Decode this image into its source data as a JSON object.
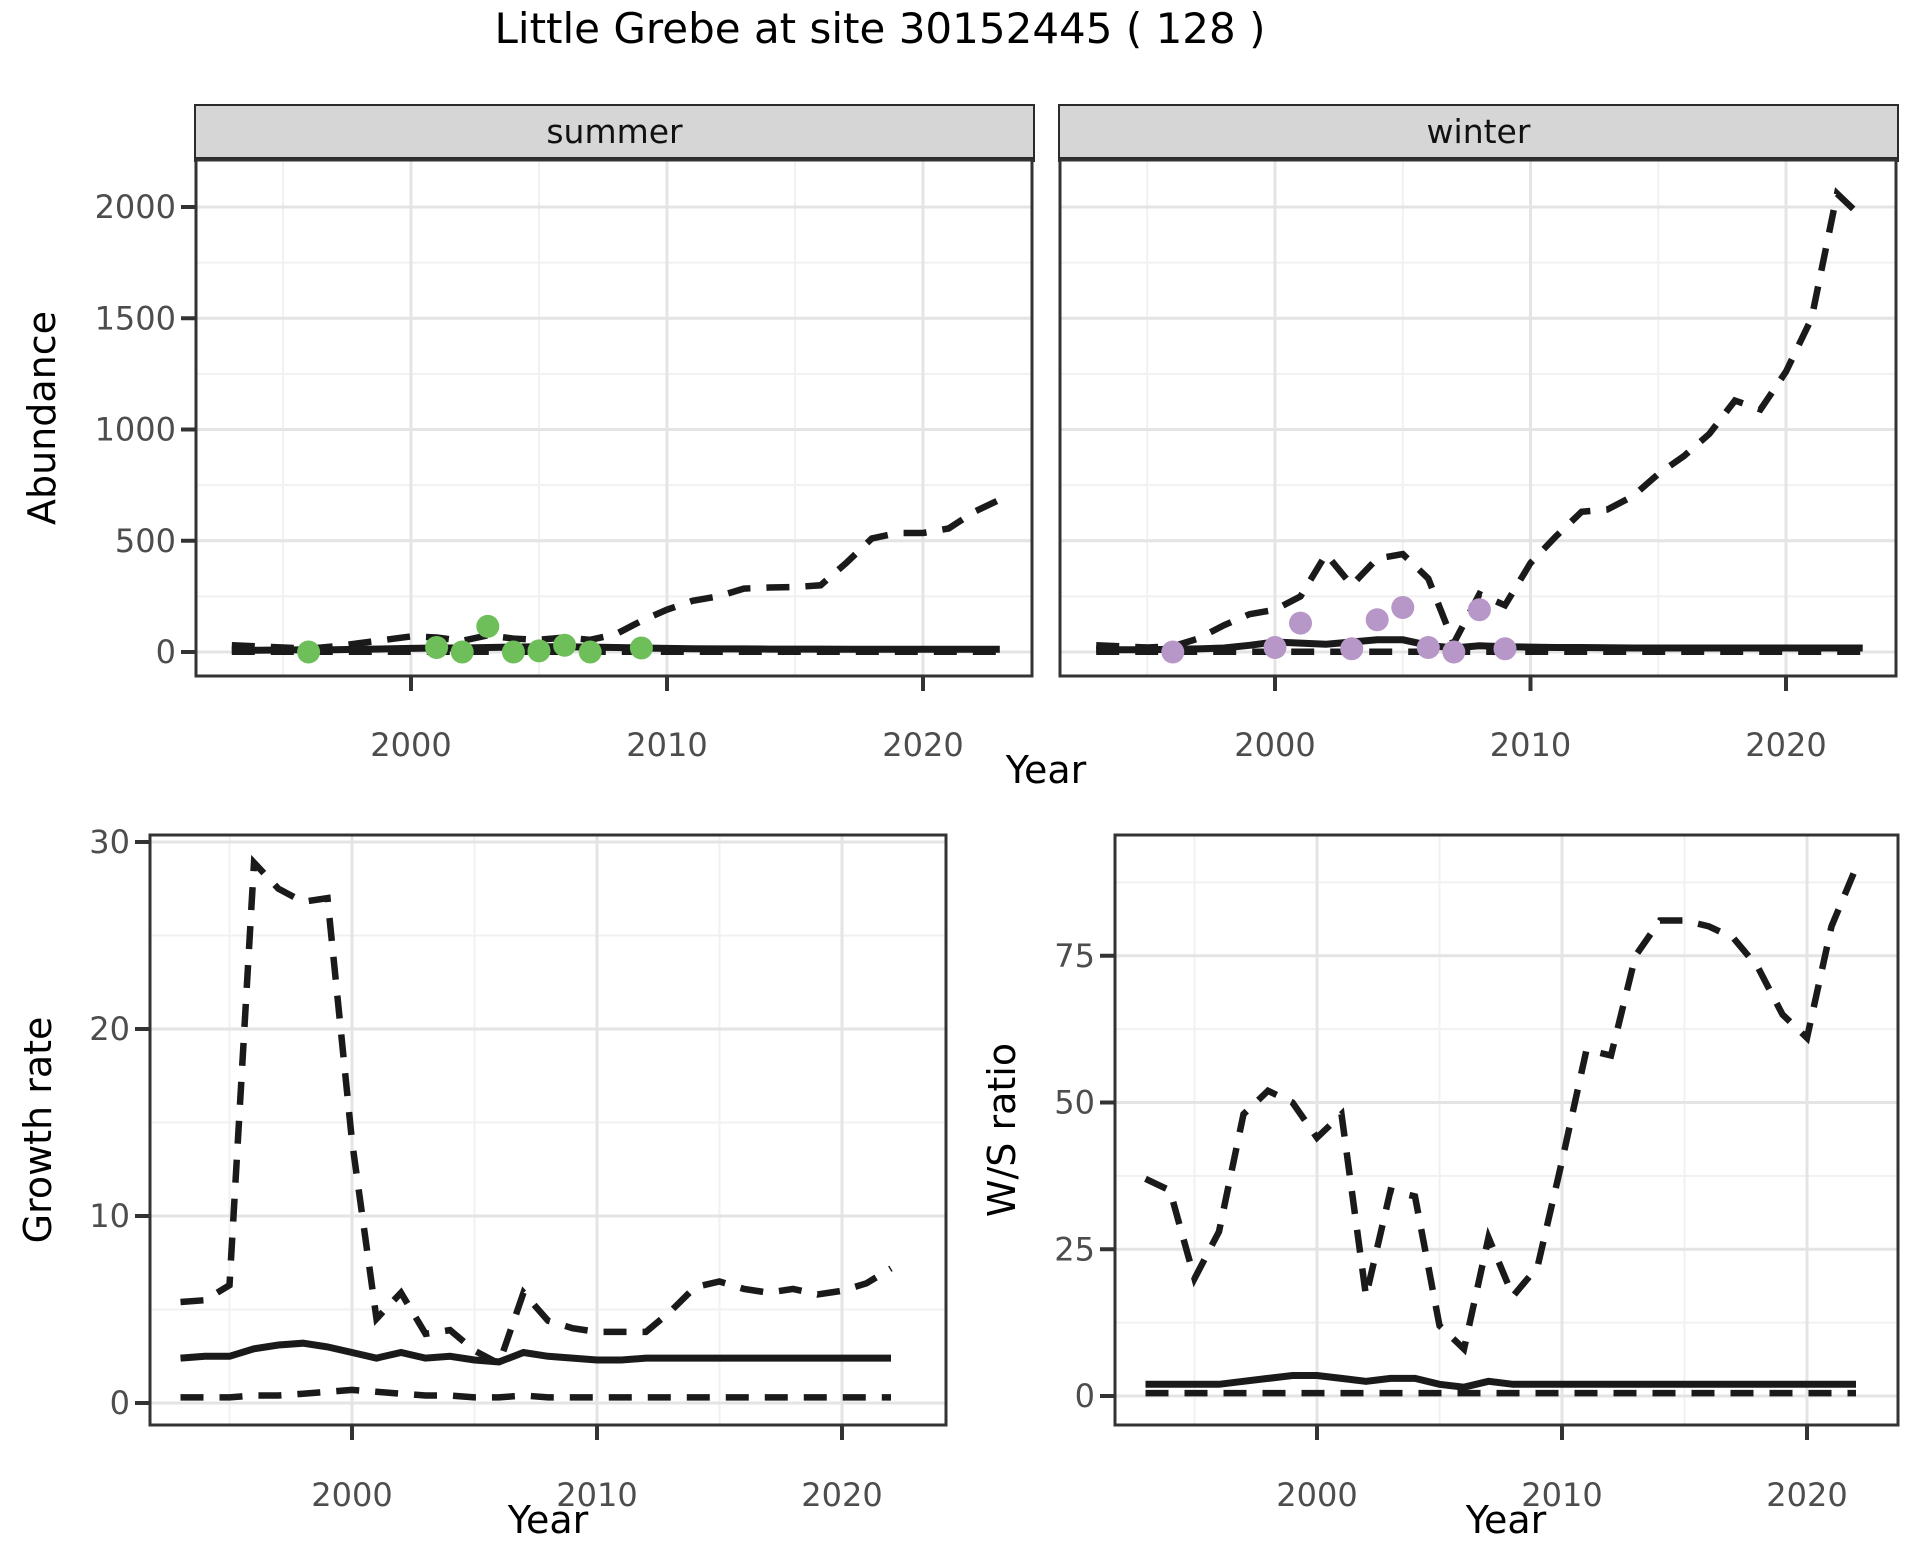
{
  "title": "Little Grebe at site 30152445 ( 128 )",
  "facets": {
    "summer": "summer",
    "winter": "winter"
  },
  "axis_labels": {
    "abundance": "Abundance",
    "year": "Year",
    "growth_rate": "Growth rate",
    "ws_ratio": "W/S ratio"
  },
  "colors": {
    "summer_point": "#6EBE5A",
    "winter_point": "#B796C8",
    "line": "#1A1A1A",
    "grid_major": "#E4E4E4",
    "grid_minor": "#F1F1F1",
    "strip_bg": "#D6D6D6",
    "panel_border": "#333333",
    "tick_text": "#4D4D4D"
  },
  "chart_data": [
    {
      "type": "line",
      "facet": "summer",
      "title": "Abundance - summer",
      "xlabel": "Year",
      "ylabel": "Abundance",
      "x": [
        1993,
        1994,
        1995,
        1996,
        1997,
        1998,
        1999,
        2000,
        2001,
        2002,
        2003,
        2004,
        2005,
        2006,
        2007,
        2008,
        2009,
        2010,
        2011,
        2012,
        2013,
        2014,
        2015,
        2016,
        2017,
        2018,
        2019,
        2020,
        2021,
        2022,
        2023
      ],
      "series": [
        {
          "name": "median",
          "style": "solid",
          "values": [
            8,
            8,
            9,
            10,
            10,
            12,
            14,
            16,
            18,
            18,
            20,
            22,
            24,
            24,
            22,
            20,
            18,
            16,
            15,
            14,
            14,
            13,
            13,
            13,
            12,
            12,
            12,
            12,
            12,
            12,
            12
          ]
        },
        {
          "name": "upper_ci",
          "style": "dashed",
          "values": [
            30,
            25,
            20,
            15,
            25,
            40,
            55,
            70,
            65,
            50,
            75,
            60,
            55,
            65,
            55,
            80,
            140,
            190,
            230,
            250,
            285,
            290,
            292,
            300,
            400,
            510,
            535,
            535,
            555,
            630,
            685
          ]
        },
        {
          "name": "lower_ci",
          "style": "dashed",
          "values": [
            1,
            1,
            1,
            1,
            1,
            1,
            1,
            1,
            1,
            1,
            1,
            1,
            1,
            1,
            1,
            1,
            1,
            1,
            1,
            1,
            1,
            1,
            1,
            1,
            1,
            1,
            1,
            1,
            1,
            1,
            1
          ]
        }
      ],
      "points": {
        "name": "observed_counts",
        "color_key": "summer_point",
        "x": [
          1996,
          2001,
          2002,
          2003,
          2004,
          2005,
          2006,
          2007,
          2009
        ],
        "y": [
          0,
          20,
          0,
          115,
          0,
          5,
          30,
          0,
          18
        ]
      },
      "x_ticks": [
        2000,
        2010,
        2020
      ],
      "x_minor": [
        1995,
        2005,
        2015
      ],
      "y_ticks": [
        0,
        500,
        1000,
        1500,
        2000
      ],
      "y_minor": [
        250,
        750,
        1250,
        1750
      ],
      "xlim": [
        1991.6,
        2024.3
      ],
      "ylim": [
        -30,
        2230
      ],
      "grid": true,
      "legend": "none"
    },
    {
      "type": "line",
      "facet": "winter",
      "title": "Abundance - winter",
      "xlabel": "Year",
      "ylabel": "Abundance",
      "x": [
        1993,
        1994,
        1995,
        1996,
        1997,
        1998,
        1999,
        2000,
        2001,
        2002,
        2003,
        2004,
        2005,
        2006,
        2007,
        2008,
        2009,
        2010,
        2011,
        2012,
        2013,
        2014,
        2015,
        2016,
        2017,
        2018,
        2019,
        2020,
        2021,
        2022,
        2023
      ],
      "series": [
        {
          "name": "median",
          "style": "solid",
          "values": [
            10,
            10,
            10,
            12,
            14,
            18,
            30,
            45,
            40,
            35,
            45,
            55,
            55,
            30,
            18,
            28,
            24,
            22,
            20,
            20,
            19,
            18,
            18,
            18,
            18,
            18,
            18,
            18,
            18,
            18,
            18
          ]
        },
        {
          "name": "upper_ci",
          "style": "dashed",
          "values": [
            30,
            25,
            20,
            25,
            60,
            120,
            170,
            190,
            250,
            440,
            300,
            420,
            440,
            330,
            40,
            260,
            210,
            400,
            520,
            630,
            640,
            700,
            800,
            880,
            980,
            1130,
            1090,
            1260,
            1500,
            2060,
            1950
          ]
        },
        {
          "name": "lower_ci",
          "style": "dashed",
          "values": [
            1,
            1,
            1,
            1,
            1,
            1,
            1,
            1,
            1,
            1,
            1,
            1,
            1,
            1,
            1,
            1,
            1,
            1,
            1,
            1,
            1,
            1,
            1,
            1,
            1,
            1,
            1,
            1,
            1,
            1,
            1
          ]
        }
      ],
      "points": {
        "name": "observed_counts",
        "color_key": "winter_point",
        "x": [
          1996,
          2000,
          2001,
          2003,
          2004,
          2005,
          2006,
          2007,
          2008,
          2009
        ],
        "y": [
          0,
          20,
          130,
          15,
          145,
          200,
          20,
          0,
          190,
          15
        ]
      },
      "x_ticks": [
        2000,
        2010,
        2020
      ],
      "x_minor": [
        1995,
        2005,
        2015
      ],
      "y_ticks": [
        0,
        500,
        1000,
        1500,
        2000
      ],
      "y_minor": [
        250,
        750,
        1250,
        1750
      ],
      "xlim": [
        1991.6,
        2024.3
      ],
      "ylim": [
        -30,
        2230
      ],
      "grid": true,
      "legend": "none"
    },
    {
      "type": "line",
      "facet": "",
      "title": "Growth rate",
      "xlabel": "Year",
      "ylabel": "Growth rate",
      "x": [
        1993,
        1994,
        1995,
        1996,
        1997,
        1998,
        1999,
        2000,
        2001,
        2002,
        2003,
        2004,
        2005,
        2006,
        2007,
        2008,
        2009,
        2010,
        2011,
        2012,
        2013,
        2014,
        2015,
        2016,
        2017,
        2018,
        2019,
        2020,
        2021,
        2022
      ],
      "series": [
        {
          "name": "median",
          "style": "solid",
          "values": [
            2.4,
            2.5,
            2.5,
            2.9,
            3.1,
            3.2,
            3,
            2.7,
            2.4,
            2.7,
            2.4,
            2.5,
            2.3,
            2.2,
            2.7,
            2.5,
            2.4,
            2.3,
            2.3,
            2.4,
            2.4,
            2.4,
            2.4,
            2.4,
            2.4,
            2.4,
            2.4,
            2.4,
            2.4,
            2.4
          ]
        },
        {
          "name": "upper_ci",
          "style": "dashed",
          "values": [
            5.4,
            5.5,
            6.3,
            28.9,
            27.5,
            26.8,
            27,
            14,
            4.5,
            5.9,
            3.7,
            3.9,
            2.8,
            2.1,
            5.9,
            4.4,
            4,
            3.8,
            3.8,
            3.8,
            4.9,
            6.2,
            6.5,
            6.1,
            5.9,
            6.1,
            5.8,
            6,
            6.4,
            7.2
          ]
        },
        {
          "name": "lower_ci",
          "style": "dashed",
          "values": [
            0.3,
            0.3,
            0.3,
            0.4,
            0.4,
            0.5,
            0.6,
            0.7,
            0.6,
            0.5,
            0.4,
            0.4,
            0.3,
            0.3,
            0.4,
            0.3,
            0.3,
            0.3,
            0.3,
            0.3,
            0.3,
            0.3,
            0.3,
            0.3,
            0.3,
            0.3,
            0.3,
            0.3,
            0.3,
            0.3
          ]
        }
      ],
      "x_ticks": [
        2000,
        2010,
        2020
      ],
      "x_minor": [
        1995,
        2005,
        2015
      ],
      "y_ticks": [
        0,
        10,
        20,
        30
      ],
      "y_minor": [
        5,
        15,
        25
      ],
      "xlim": [
        1991.8,
        2024.2
      ],
      "ylim": [
        -1.2,
        30.4
      ],
      "grid": true,
      "legend": "none"
    },
    {
      "type": "line",
      "facet": "",
      "title": "W/S ratio",
      "xlabel": "Year",
      "ylabel": "W/S ratio",
      "x": [
        1993,
        1994,
        1995,
        1996,
        1997,
        1998,
        1999,
        2000,
        2001,
        2002,
        2003,
        2004,
        2005,
        2006,
        2007,
        2008,
        2009,
        2010,
        2011,
        2012,
        2013,
        2014,
        2015,
        2016,
        2017,
        2018,
        2019,
        2020,
        2021,
        2022
      ],
      "series": [
        {
          "name": "median",
          "style": "solid",
          "values": [
            2,
            2,
            2,
            2,
            2.5,
            3,
            3.5,
            3.5,
            3,
            2.5,
            3,
            3,
            2,
            1.5,
            2.5,
            2,
            2,
            2,
            2,
            2,
            2,
            2,
            2,
            2,
            2,
            2,
            2,
            2,
            2,
            2
          ]
        },
        {
          "name": "upper_ci",
          "style": "dashed",
          "values": [
            37,
            35,
            20,
            28,
            48,
            52,
            50,
            44,
            48,
            17,
            35,
            34,
            12,
            8,
            27,
            17,
            22,
            40,
            59,
            58,
            75,
            81,
            81,
            80,
            78,
            73,
            65,
            61,
            80,
            90
          ]
        },
        {
          "name": "lower_ci",
          "style": "dashed",
          "values": [
            0.5,
            0.5,
            0.5,
            0.5,
            0.5,
            0.5,
            0.5,
            0.5,
            0.5,
            0.5,
            0.5,
            0.5,
            0.5,
            0.5,
            0.5,
            0.5,
            0.5,
            0.5,
            0.5,
            0.5,
            0.5,
            0.5,
            0.5,
            0.5,
            0.5,
            0.5,
            0.5,
            0.5,
            0.5,
            0.5
          ]
        }
      ],
      "x_ticks": [
        2000,
        2010,
        2020
      ],
      "x_minor": [
        1995,
        2005,
        2015
      ],
      "y_ticks": [
        0,
        25,
        50,
        75
      ],
      "y_minor": [
        12.5,
        37.5,
        62.5,
        87.5
      ],
      "xlim": [
        1991.8,
        2023.7
      ],
      "ylim": [
        -5,
        95.5
      ],
      "grid": true,
      "legend": "none"
    }
  ]
}
